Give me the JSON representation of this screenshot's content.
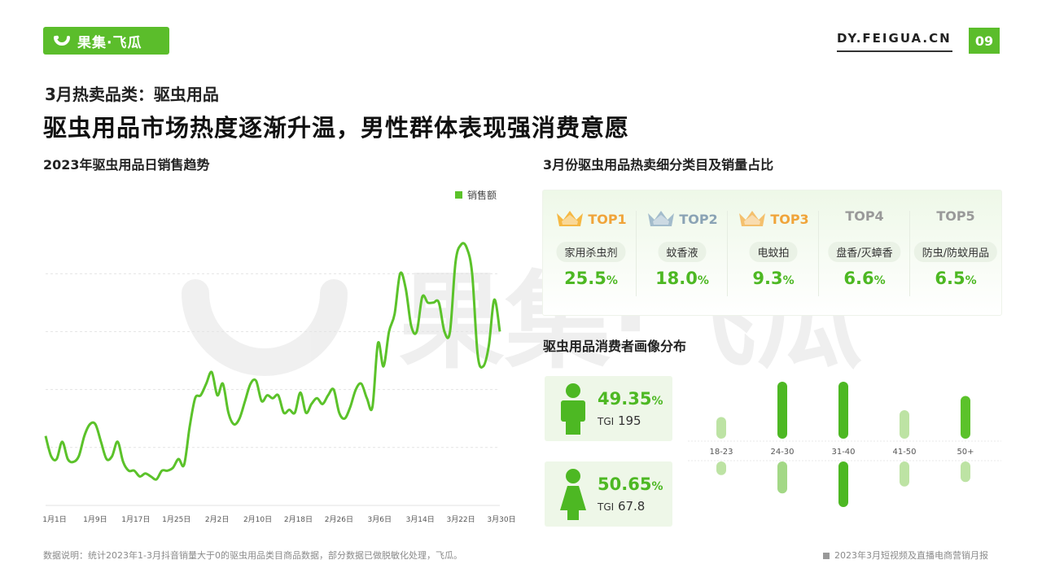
{
  "header": {
    "logo_text": "果集·飞瓜",
    "site": "DY.FEIGUA.CN",
    "page_number": "09",
    "brand_color": "#5bbd2b"
  },
  "subtitle": "3月热卖品类：驱虫用品",
  "main_title": "驱虫用品市场热度逐渐升温，男性群体表现强消费意愿",
  "left_section_title": "2023年驱虫用品日销售趋势",
  "right_section_title": "3月份驱虫用品热卖细分类目及销量占比",
  "consumer_title": "驱虫用品消费者画像分布",
  "watermark_text": "果集·飞瓜",
  "top5": [
    {
      "rank": "TOP1",
      "category": "家用杀虫剂",
      "value": "25.5",
      "unit": "%",
      "crown": "gold",
      "rank_color": "#f0a43a"
    },
    {
      "rank": "TOP2",
      "category": "蚊香液",
      "value": "18.0",
      "unit": "%",
      "crown": "silver",
      "rank_color": "#8aa3b5"
    },
    {
      "rank": "TOP3",
      "category": "电蚊拍",
      "value": "9.3",
      "unit": "%",
      "crown": "bronze",
      "rank_color": "#f0a43a"
    },
    {
      "rank": "TOP4",
      "category": "盘香/灭蟑香",
      "value": "6.6",
      "unit": "%",
      "crown": "",
      "rank_color": "#999999"
    },
    {
      "rank": "TOP5",
      "category": "防虫/防蚊用品",
      "value": "6.5",
      "unit": "%",
      "crown": "",
      "rank_color": "#999999"
    }
  ],
  "gender": {
    "male": {
      "icon": "male-icon",
      "pct": "49.35",
      "unit": "%",
      "tgi_label": "TGI",
      "tgi_value": "195"
    },
    "female": {
      "icon": "female-icon",
      "pct": "50.65",
      "unit": "%",
      "tgi_label": "TGI",
      "tgi_value": "67.8"
    }
  },
  "age_chart": {
    "categories": [
      "18-23",
      "24-30",
      "31-40",
      "41-50",
      "50+"
    ],
    "upper_values": [
      0.38,
      1.0,
      1.0,
      0.5,
      0.75
    ],
    "lower_values": [
      0.3,
      0.7,
      1.0,
      0.55,
      0.45
    ],
    "upper_colors": [
      "#bde3a4",
      "#4db823",
      "#4db823",
      "#bde3a4",
      "#5bc22a"
    ],
    "lower_colors": [
      "#bde3a4",
      "#a3d886",
      "#4db823",
      "#bde3a4",
      "#bde3a4"
    ]
  },
  "chart_data": {
    "type": "line",
    "title": "2023年驱虫用品日销售趋势",
    "legend": "销售额",
    "legend_position": "top-right",
    "color": "#5bc22a",
    "x_tick_labels": [
      "1月1日",
      "1月9日",
      "1月17日",
      "1月25日",
      "2月2日",
      "2月10日",
      "2月18日",
      "2月26日",
      "3月6日",
      "3月14日",
      "3月22日",
      "3月30日"
    ],
    "ylim": [
      0,
      100
    ],
    "y_axis_labels": "hidden",
    "grid": "dashed-horizontal",
    "values": [
      24,
      17,
      16,
      22,
      16,
      15,
      17,
      24,
      28,
      28,
      22,
      16,
      17,
      22,
      15,
      12,
      12,
      10,
      11,
      10,
      9,
      12,
      12,
      13,
      16,
      14,
      27,
      37,
      38,
      42,
      46,
      38,
      42,
      32,
      28,
      30,
      36,
      42,
      43,
      36,
      38,
      37,
      38,
      32,
      33,
      32,
      39,
      32,
      35,
      37,
      35,
      38,
      40,
      32,
      30,
      34,
      40,
      42,
      37,
      34,
      56,
      48,
      60,
      66,
      80,
      75,
      62,
      60,
      72,
      70,
      70,
      70,
      60,
      60,
      84,
      90,
      89,
      80,
      52,
      48,
      55,
      71,
      60
    ]
  },
  "footnote": "数据说明：统计2023年1-3月抖音销量大于0的驱虫用品类目商品数据，部分数据已做脱敏化处理，飞瓜。",
  "report_name": "2023年3月短视频及直播电商营销月报"
}
